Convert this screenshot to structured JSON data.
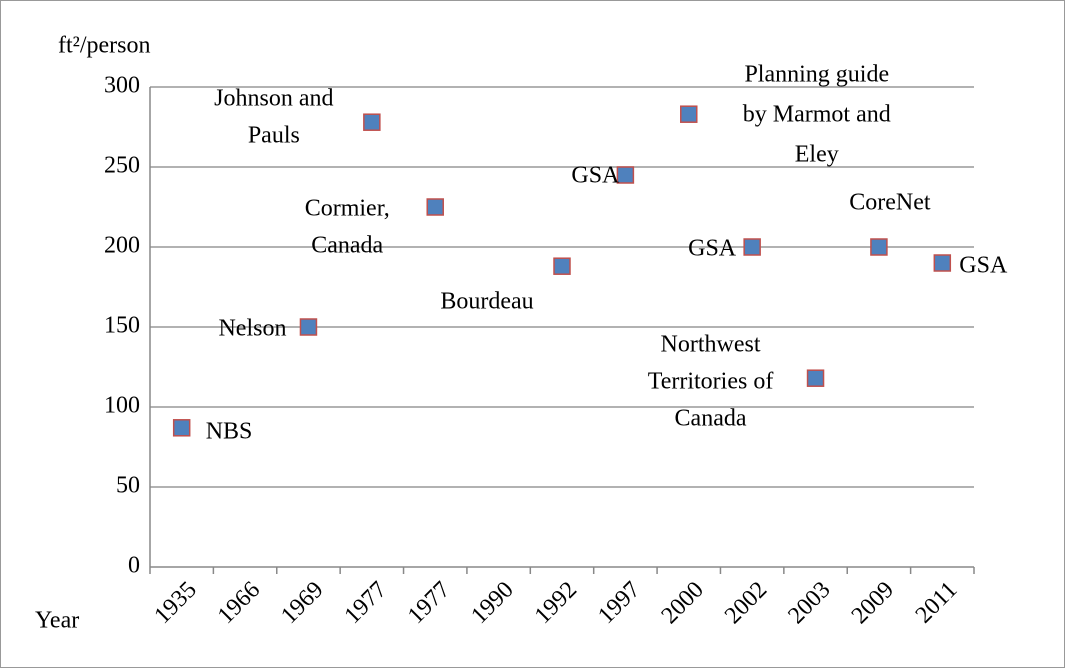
{
  "chart_data": {
    "type": "scatter",
    "y_label": "ft²/person",
    "x_label": "Year",
    "categories": [
      "1935",
      "1966",
      "1969",
      "1977",
      "1977",
      "1990",
      "1992",
      "1997",
      "2000",
      "2002",
      "2003",
      "2009",
      "2011"
    ],
    "values": [
      87,
      null,
      150,
      278,
      225,
      null,
      188,
      245,
      283,
      200,
      118,
      200,
      190
    ],
    "labels": [
      [
        "NBS"
      ],
      null,
      [
        "Nelson"
      ],
      [
        "Johnson and",
        "Pauls"
      ],
      [
        "Cormier,",
        "Canada"
      ],
      null,
      [
        "Bourdeau"
      ],
      [
        "GSA"
      ],
      [
        "Planning guide",
        "by Marmot and",
        "Eley"
      ],
      [
        "GSA"
      ],
      [
        "Northwest",
        "Territories of",
        "Canada"
      ],
      [
        "CoreNet"
      ],
      [
        "GSA"
      ]
    ],
    "color": "#4f81bd",
    "edge_color": "#c0504d",
    "ylim": [
      0,
      300
    ],
    "yticks": [
      0,
      50,
      100,
      150,
      200,
      250,
      300
    ],
    "grid": true
  }
}
